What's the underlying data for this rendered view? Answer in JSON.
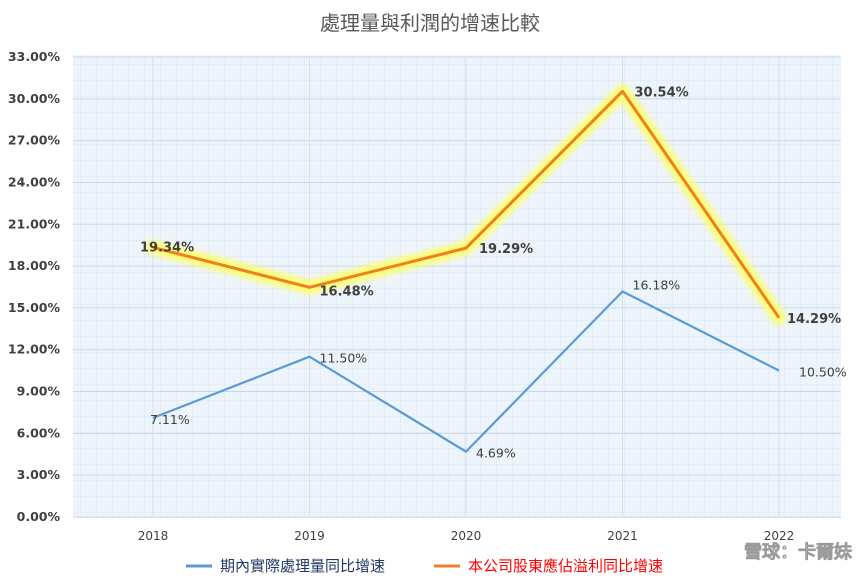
{
  "chart_data": {
    "type": "line",
    "title": "處理量與利潤的增速比較",
    "categories": [
      "2018",
      "2019",
      "2020",
      "2021",
      "2022"
    ],
    "y_ticks": [
      "0.00%",
      "3.00%",
      "6.00%",
      "9.00%",
      "12.00%",
      "15.00%",
      "18.00%",
      "21.00%",
      "24.00%",
      "27.00%",
      "30.00%",
      "33.00%"
    ],
    "ylim": [
      0,
      33
    ],
    "grid": true,
    "legend_position": "bottom",
    "series": [
      {
        "name": "期內實際處理量同比增速",
        "color": "#5b9bd5",
        "values": [
          7.11,
          11.5,
          4.69,
          16.18,
          10.5
        ],
        "labels": [
          "7.11%",
          "11.50%",
          "4.69%",
          "16.18%",
          "10.50%"
        ]
      },
      {
        "name": "本公司股東應佔溢利同比增速",
        "color": "#ed7d31",
        "glow": "#ffff66",
        "values": [
          19.34,
          16.48,
          19.29,
          30.54,
          14.29
        ],
        "labels": [
          "19.34%",
          "16.48%",
          "19.29%",
          "30.54%",
          "14.29%"
        ]
      }
    ]
  },
  "watermark": "雪球：卡爾妹"
}
